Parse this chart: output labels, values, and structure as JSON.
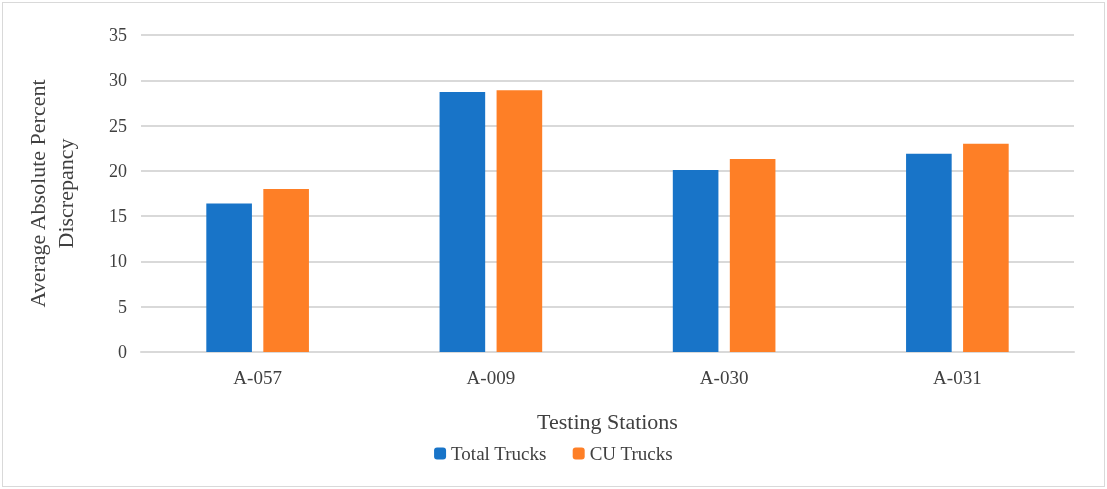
{
  "chart_data": {
    "type": "bar",
    "xlabel": "Testing Stations",
    "ylabel": "Average Absolute Percent\nDiscrepancy",
    "categories": [
      "A-057",
      "A-009",
      "A-030",
      "A-031"
    ],
    "series": [
      {
        "name": "Total Trucks",
        "color": "#1874c8",
        "values": [
          16.4,
          28.7,
          20.1,
          21.9
        ]
      },
      {
        "name": "CU Trucks",
        "color": "#fe7f26",
        "values": [
          18.0,
          28.9,
          21.3,
          23.0
        ]
      }
    ],
    "ylim": [
      0,
      35
    ],
    "yticks": [
      0,
      5,
      10,
      15,
      20,
      25,
      30,
      35
    ],
    "grid": "y",
    "legend": "bottom"
  }
}
